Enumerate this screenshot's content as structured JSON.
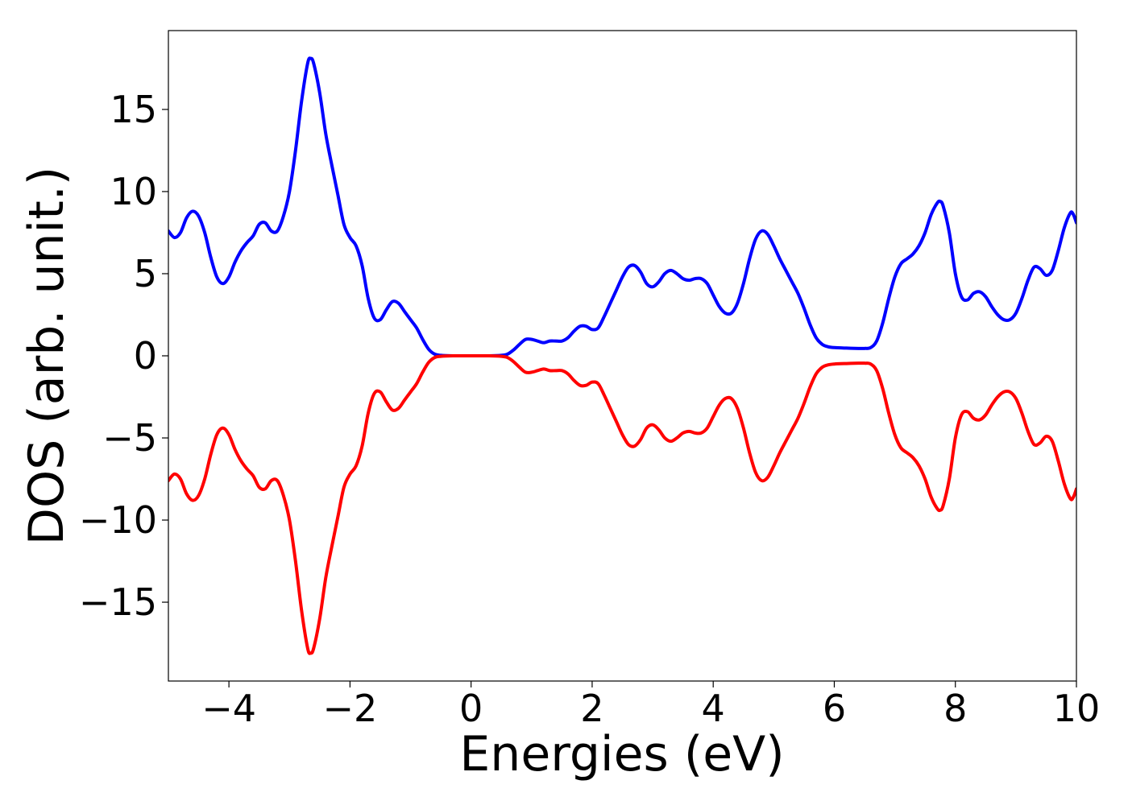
{
  "chart_data": {
    "type": "line",
    "title": "",
    "xlabel": "Energies (eV)",
    "ylabel": "DOS (arb. unit.)",
    "xlim": [
      -5,
      10
    ],
    "ylim": [
      -19.8,
      19.8
    ],
    "xticks": [
      -4,
      -2,
      0,
      2,
      4,
      6,
      8,
      10
    ],
    "xtick_labels": [
      "−4",
      "−2",
      "0",
      "2",
      "4",
      "6",
      "8",
      "10"
    ],
    "yticks": [
      15,
      10,
      5,
      0,
      -5,
      -10,
      -15
    ],
    "ytick_labels": [
      "15",
      "10",
      "5",
      "0",
      "−5",
      "−10",
      "−15"
    ],
    "grid": false,
    "legend": "none",
    "series": [
      {
        "color": "#0000ff",
        "points": [
          [
            -5.0,
            7.6
          ],
          [
            -4.9,
            7.2
          ],
          [
            -4.8,
            7.5
          ],
          [
            -4.7,
            8.4
          ],
          [
            -4.6,
            8.8
          ],
          [
            -4.5,
            8.5
          ],
          [
            -4.4,
            7.5
          ],
          [
            -4.3,
            6.0
          ],
          [
            -4.2,
            4.8
          ],
          [
            -4.1,
            4.4
          ],
          [
            -4.0,
            4.8
          ],
          [
            -3.9,
            5.7
          ],
          [
            -3.8,
            6.4
          ],
          [
            -3.7,
            6.9
          ],
          [
            -3.6,
            7.3
          ],
          [
            -3.5,
            8.0
          ],
          [
            -3.4,
            8.1
          ],
          [
            -3.3,
            7.6
          ],
          [
            -3.2,
            7.6
          ],
          [
            -3.1,
            8.5
          ],
          [
            -3.0,
            10.0
          ],
          [
            -2.9,
            12.5
          ],
          [
            -2.8,
            15.5
          ],
          [
            -2.7,
            17.8
          ],
          [
            -2.65,
            18.1
          ],
          [
            -2.6,
            17.8
          ],
          [
            -2.5,
            16.0
          ],
          [
            -2.4,
            13.5
          ],
          [
            -2.3,
            11.6
          ],
          [
            -2.2,
            9.8
          ],
          [
            -2.1,
            8.0
          ],
          [
            -2.0,
            7.2
          ],
          [
            -1.9,
            6.7
          ],
          [
            -1.8,
            5.5
          ],
          [
            -1.7,
            3.5
          ],
          [
            -1.6,
            2.3
          ],
          [
            -1.5,
            2.2
          ],
          [
            -1.4,
            2.8
          ],
          [
            -1.3,
            3.3
          ],
          [
            -1.2,
            3.2
          ],
          [
            -1.1,
            2.7
          ],
          [
            -1.0,
            2.2
          ],
          [
            -0.9,
            1.7
          ],
          [
            -0.8,
            1.0
          ],
          [
            -0.7,
            0.4
          ],
          [
            -0.6,
            0.1
          ],
          [
            -0.5,
            0.03
          ],
          [
            -0.3,
            0.0
          ],
          [
            0.0,
            0.0
          ],
          [
            0.3,
            0.0
          ],
          [
            0.5,
            0.03
          ],
          [
            0.6,
            0.1
          ],
          [
            0.7,
            0.35
          ],
          [
            0.8,
            0.7
          ],
          [
            0.9,
            1.0
          ],
          [
            1.0,
            1.0
          ],
          [
            1.1,
            0.9
          ],
          [
            1.2,
            0.8
          ],
          [
            1.3,
            0.9
          ],
          [
            1.4,
            0.9
          ],
          [
            1.5,
            0.9
          ],
          [
            1.6,
            1.1
          ],
          [
            1.7,
            1.5
          ],
          [
            1.8,
            1.8
          ],
          [
            1.9,
            1.8
          ],
          [
            2.0,
            1.6
          ],
          [
            2.1,
            1.7
          ],
          [
            2.2,
            2.4
          ],
          [
            2.3,
            3.2
          ],
          [
            2.4,
            4.0
          ],
          [
            2.5,
            4.8
          ],
          [
            2.6,
            5.4
          ],
          [
            2.7,
            5.5
          ],
          [
            2.8,
            5.1
          ],
          [
            2.9,
            4.4
          ],
          [
            3.0,
            4.2
          ],
          [
            3.1,
            4.5
          ],
          [
            3.2,
            5.0
          ],
          [
            3.3,
            5.2
          ],
          [
            3.4,
            5.0
          ],
          [
            3.5,
            4.7
          ],
          [
            3.6,
            4.6
          ],
          [
            3.7,
            4.7
          ],
          [
            3.8,
            4.7
          ],
          [
            3.9,
            4.4
          ],
          [
            4.0,
            3.7
          ],
          [
            4.1,
            3.0
          ],
          [
            4.2,
            2.6
          ],
          [
            4.3,
            2.6
          ],
          [
            4.4,
            3.2
          ],
          [
            4.5,
            4.4
          ],
          [
            4.6,
            5.9
          ],
          [
            4.7,
            7.1
          ],
          [
            4.8,
            7.6
          ],
          [
            4.9,
            7.4
          ],
          [
            5.0,
            6.7
          ],
          [
            5.1,
            5.9
          ],
          [
            5.2,
            5.2
          ],
          [
            5.3,
            4.5
          ],
          [
            5.4,
            3.8
          ],
          [
            5.5,
            2.9
          ],
          [
            5.6,
            1.9
          ],
          [
            5.7,
            1.1
          ],
          [
            5.8,
            0.7
          ],
          [
            5.9,
            0.55
          ],
          [
            6.0,
            0.5
          ],
          [
            6.2,
            0.47
          ],
          [
            6.4,
            0.45
          ],
          [
            6.5,
            0.45
          ],
          [
            6.6,
            0.5
          ],
          [
            6.7,
            0.9
          ],
          [
            6.8,
            2.0
          ],
          [
            6.9,
            3.5
          ],
          [
            7.0,
            4.8
          ],
          [
            7.1,
            5.6
          ],
          [
            7.2,
            5.9
          ],
          [
            7.3,
            6.2
          ],
          [
            7.4,
            6.7
          ],
          [
            7.5,
            7.5
          ],
          [
            7.6,
            8.6
          ],
          [
            7.7,
            9.3
          ],
          [
            7.75,
            9.4
          ],
          [
            7.8,
            9.1
          ],
          [
            7.9,
            7.5
          ],
          [
            8.0,
            5.0
          ],
          [
            8.1,
            3.6
          ],
          [
            8.2,
            3.4
          ],
          [
            8.3,
            3.8
          ],
          [
            8.4,
            3.9
          ],
          [
            8.5,
            3.6
          ],
          [
            8.6,
            3.0
          ],
          [
            8.7,
            2.5
          ],
          [
            8.8,
            2.2
          ],
          [
            8.9,
            2.2
          ],
          [
            9.0,
            2.6
          ],
          [
            9.1,
            3.5
          ],
          [
            9.2,
            4.6
          ],
          [
            9.3,
            5.4
          ],
          [
            9.4,
            5.3
          ],
          [
            9.5,
            4.9
          ],
          [
            9.6,
            5.2
          ],
          [
            9.7,
            6.4
          ],
          [
            9.8,
            7.8
          ],
          [
            9.9,
            8.7
          ],
          [
            9.95,
            8.6
          ],
          [
            10.0,
            8.1
          ]
        ]
      },
      {
        "color": "#ff0000",
        "points": [
          [
            -5.0,
            -7.6
          ],
          [
            -4.9,
            -7.2
          ],
          [
            -4.8,
            -7.5
          ],
          [
            -4.7,
            -8.4
          ],
          [
            -4.6,
            -8.8
          ],
          [
            -4.5,
            -8.5
          ],
          [
            -4.4,
            -7.5
          ],
          [
            -4.3,
            -6.0
          ],
          [
            -4.2,
            -4.8
          ],
          [
            -4.1,
            -4.4
          ],
          [
            -4.0,
            -4.8
          ],
          [
            -3.9,
            -5.7
          ],
          [
            -3.8,
            -6.4
          ],
          [
            -3.7,
            -6.9
          ],
          [
            -3.6,
            -7.3
          ],
          [
            -3.5,
            -8.0
          ],
          [
            -3.4,
            -8.1
          ],
          [
            -3.3,
            -7.6
          ],
          [
            -3.2,
            -7.6
          ],
          [
            -3.1,
            -8.5
          ],
          [
            -3.0,
            -10.0
          ],
          [
            -2.9,
            -12.5
          ],
          [
            -2.8,
            -15.5
          ],
          [
            -2.7,
            -17.8
          ],
          [
            -2.65,
            -18.1
          ],
          [
            -2.6,
            -17.8
          ],
          [
            -2.5,
            -16.0
          ],
          [
            -2.4,
            -13.5
          ],
          [
            -2.3,
            -11.6
          ],
          [
            -2.2,
            -9.8
          ],
          [
            -2.1,
            -8.0
          ],
          [
            -2.0,
            -7.2
          ],
          [
            -1.9,
            -6.7
          ],
          [
            -1.8,
            -5.5
          ],
          [
            -1.7,
            -3.5
          ],
          [
            -1.6,
            -2.3
          ],
          [
            -1.5,
            -2.2
          ],
          [
            -1.4,
            -2.8
          ],
          [
            -1.3,
            -3.3
          ],
          [
            -1.2,
            -3.2
          ],
          [
            -1.1,
            -2.7
          ],
          [
            -1.0,
            -2.2
          ],
          [
            -0.9,
            -1.7
          ],
          [
            -0.8,
            -1.0
          ],
          [
            -0.7,
            -0.4
          ],
          [
            -0.6,
            -0.1
          ],
          [
            -0.5,
            -0.03
          ],
          [
            -0.3,
            0.0
          ],
          [
            0.0,
            0.0
          ],
          [
            0.3,
            0.0
          ],
          [
            0.5,
            -0.03
          ],
          [
            0.6,
            -0.1
          ],
          [
            0.7,
            -0.35
          ],
          [
            0.8,
            -0.7
          ],
          [
            0.9,
            -1.0
          ],
          [
            1.0,
            -1.0
          ],
          [
            1.1,
            -0.9
          ],
          [
            1.2,
            -0.8
          ],
          [
            1.3,
            -0.9
          ],
          [
            1.4,
            -0.9
          ],
          [
            1.5,
            -0.9
          ],
          [
            1.6,
            -1.1
          ],
          [
            1.7,
            -1.5
          ],
          [
            1.8,
            -1.8
          ],
          [
            1.9,
            -1.8
          ],
          [
            2.0,
            -1.6
          ],
          [
            2.1,
            -1.7
          ],
          [
            2.2,
            -2.4
          ],
          [
            2.3,
            -3.2
          ],
          [
            2.4,
            -4.0
          ],
          [
            2.5,
            -4.8
          ],
          [
            2.6,
            -5.4
          ],
          [
            2.7,
            -5.5
          ],
          [
            2.8,
            -5.1
          ],
          [
            2.9,
            -4.4
          ],
          [
            3.0,
            -4.2
          ],
          [
            3.1,
            -4.5
          ],
          [
            3.2,
            -5.0
          ],
          [
            3.3,
            -5.2
          ],
          [
            3.4,
            -5.0
          ],
          [
            3.5,
            -4.7
          ],
          [
            3.6,
            -4.6
          ],
          [
            3.7,
            -4.7
          ],
          [
            3.8,
            -4.7
          ],
          [
            3.9,
            -4.4
          ],
          [
            4.0,
            -3.7
          ],
          [
            4.1,
            -3.0
          ],
          [
            4.2,
            -2.6
          ],
          [
            4.3,
            -2.6
          ],
          [
            4.4,
            -3.2
          ],
          [
            4.5,
            -4.4
          ],
          [
            4.6,
            -5.9
          ],
          [
            4.7,
            -7.1
          ],
          [
            4.8,
            -7.6
          ],
          [
            4.9,
            -7.4
          ],
          [
            5.0,
            -6.7
          ],
          [
            5.1,
            -5.9
          ],
          [
            5.2,
            -5.2
          ],
          [
            5.3,
            -4.5
          ],
          [
            5.4,
            -3.8
          ],
          [
            5.5,
            -2.9
          ],
          [
            5.6,
            -1.9
          ],
          [
            5.7,
            -1.1
          ],
          [
            5.8,
            -0.7
          ],
          [
            5.9,
            -0.55
          ],
          [
            6.0,
            -0.5
          ],
          [
            6.2,
            -0.47
          ],
          [
            6.4,
            -0.45
          ],
          [
            6.5,
            -0.45
          ],
          [
            6.6,
            -0.5
          ],
          [
            6.7,
            -0.9
          ],
          [
            6.8,
            -2.0
          ],
          [
            6.9,
            -3.5
          ],
          [
            7.0,
            -4.8
          ],
          [
            7.1,
            -5.6
          ],
          [
            7.2,
            -5.9
          ],
          [
            7.3,
            -6.2
          ],
          [
            7.4,
            -6.7
          ],
          [
            7.5,
            -7.5
          ],
          [
            7.6,
            -8.6
          ],
          [
            7.7,
            -9.3
          ],
          [
            7.75,
            -9.4
          ],
          [
            7.8,
            -9.1
          ],
          [
            7.9,
            -7.5
          ],
          [
            8.0,
            -5.0
          ],
          [
            8.1,
            -3.6
          ],
          [
            8.2,
            -3.4
          ],
          [
            8.3,
            -3.8
          ],
          [
            8.4,
            -3.9
          ],
          [
            8.5,
            -3.6
          ],
          [
            8.6,
            -3.0
          ],
          [
            8.7,
            -2.5
          ],
          [
            8.8,
            -2.2
          ],
          [
            8.9,
            -2.2
          ],
          [
            9.0,
            -2.6
          ],
          [
            9.1,
            -3.5
          ],
          [
            9.2,
            -4.6
          ],
          [
            9.3,
            -5.4
          ],
          [
            9.4,
            -5.3
          ],
          [
            9.5,
            -4.9
          ],
          [
            9.6,
            -5.2
          ],
          [
            9.7,
            -6.4
          ],
          [
            9.8,
            -7.8
          ],
          [
            9.9,
            -8.7
          ],
          [
            9.95,
            -8.6
          ],
          [
            10.0,
            -8.1
          ]
        ]
      }
    ]
  }
}
